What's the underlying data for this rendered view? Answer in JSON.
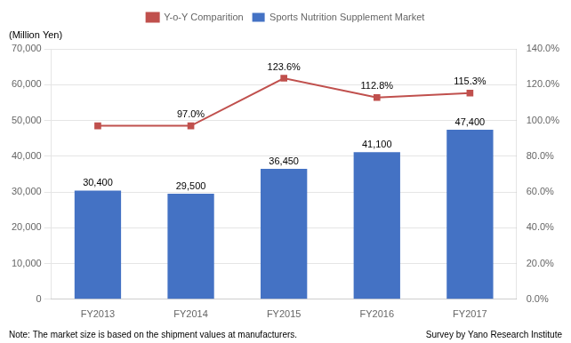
{
  "chart_data": {
    "type": "bar",
    "ylabel": "(Million Yen)",
    "annotations": [
      "Note: The market size is based on the shipment values at manufacturers.",
      "Survey by Yano Research Institute"
    ],
    "categories": [
      "FY2013",
      "FY2014",
      "FY2015",
      "FY2016",
      "FY2017"
    ],
    "series": [
      {
        "name": "Sports Nutrition Supplement Market",
        "type": "bar",
        "color": "#4472C4",
        "values": [
          30400,
          29500,
          36450,
          41100,
          47400
        ],
        "value_labels": [
          "30,400",
          "29,500",
          "36,450",
          "41,100",
          "47,400"
        ]
      },
      {
        "name": "Y-o-Y Comparition",
        "type": "line",
        "axis": "y2",
        "color": "#C0504D",
        "marker": "square",
        "values": [
          97.0,
          97.0,
          123.6,
          112.8,
          115.3
        ],
        "value_labels": [
          null,
          "97.0%",
          "123.6%",
          "112.8%",
          "115.3%"
        ]
      }
    ],
    "ylim": [
      0,
      70000
    ],
    "yticks": [
      0,
      {
        "value": 10000,
        "label": "10,000"
      },
      {
        "value": 20000,
        "label": "20,000"
      },
      {
        "value": 30000,
        "label": "30,000"
      },
      {
        "value": 40000,
        "label": "40,000"
      },
      {
        "value": 50000,
        "label": "50,000"
      },
      {
        "value": 60000,
        "label": "60,000"
      },
      {
        "value": 70000,
        "label": "70,000"
      }
    ],
    "y2lim": [
      0,
      140
    ],
    "y2ticks": [
      {
        "value": 0,
        "label": "0.0%"
      },
      {
        "value": 20,
        "label": "20.0%"
      },
      {
        "value": 40,
        "label": "40.0%"
      },
      {
        "value": 60,
        "label": "60.0%"
      },
      {
        "value": 80,
        "label": "80.0%"
      },
      {
        "value": 100,
        "label": "100.0%"
      },
      {
        "value": 120,
        "label": "120.0%"
      },
      {
        "value": 140,
        "label": "140.0%"
      }
    ],
    "grid": true,
    "legend": "top",
    "data_labels": true
  }
}
